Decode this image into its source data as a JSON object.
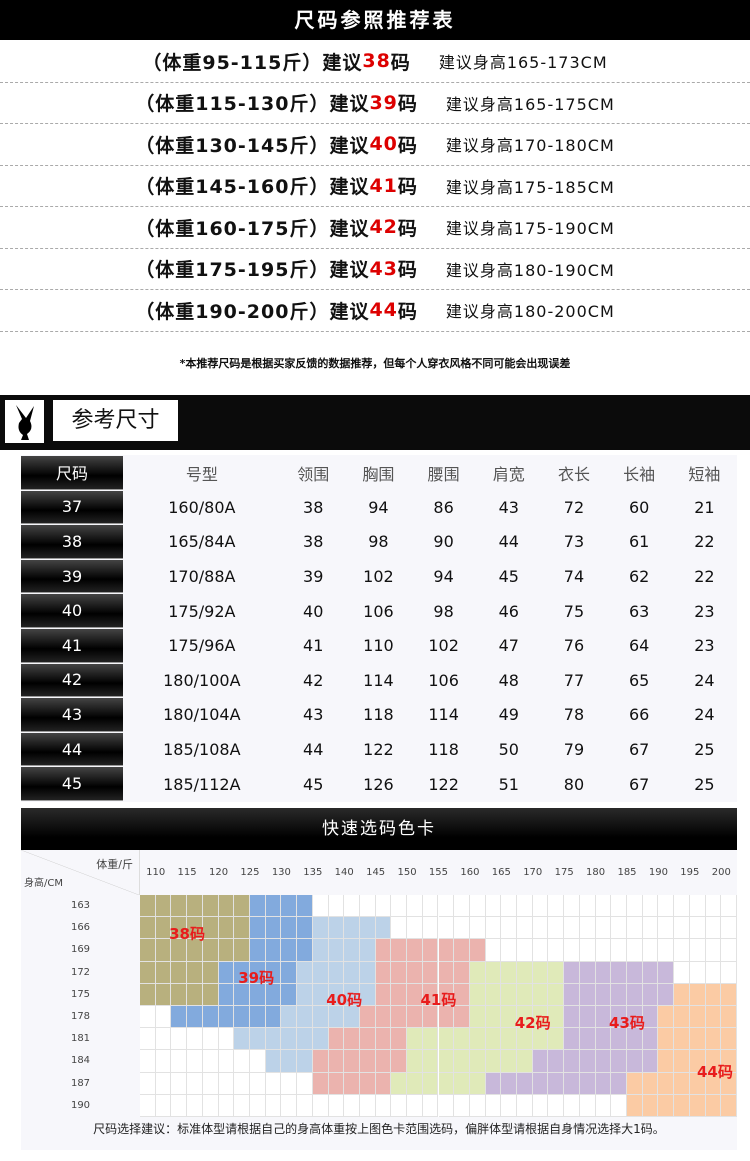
{
  "header": {
    "title": "尺码参照推荐表"
  },
  "recommendations": [
    {
      "weight": "（体重95-115斤）建议",
      "size": "38",
      "unit": "码",
      "height": "建议身高165-173CM"
    },
    {
      "weight": "（体重115-130斤）建议",
      "size": "39",
      "unit": "码",
      "height": "建议身高165-175CM"
    },
    {
      "weight": "（体重130-145斤）建议",
      "size": "40",
      "unit": "码",
      "height": "建议身高170-180CM"
    },
    {
      "weight": "（体重145-160斤）建议",
      "size": "41",
      "unit": "码",
      "height": "建议身高175-185CM"
    },
    {
      "weight": "（体重160-175斤）建议",
      "size": "42",
      "unit": "码",
      "height": "建议身高175-190CM"
    },
    {
      "weight": "（体重175-195斤）建议",
      "size": "43",
      "unit": "码",
      "height": "建议身高180-190CM"
    },
    {
      "weight": "（体重190-200斤）建议",
      "size": "44",
      "unit": "码",
      "height": "建议身高180-200CM"
    }
  ],
  "note": "*本推荐尺码是根据买家反馈的数据推荐，但每个人穿衣风格不同可能会出现误差",
  "reference": {
    "title": "参考尺寸",
    "logo": "bunny-logo"
  },
  "size_table": {
    "headers": [
      "尺码",
      "号型",
      "领围",
      "胸围",
      "腰围",
      "肩宽",
      "衣长",
      "长袖",
      "短袖"
    ],
    "rows": [
      [
        "37",
        "160/80A",
        "38",
        "94",
        "86",
        "43",
        "72",
        "60",
        "21"
      ],
      [
        "38",
        "165/84A",
        "38",
        "98",
        "90",
        "44",
        "73",
        "61",
        "22"
      ],
      [
        "39",
        "170/88A",
        "39",
        "102",
        "94",
        "45",
        "74",
        "62",
        "22"
      ],
      [
        "40",
        "175/92A",
        "40",
        "106",
        "98",
        "46",
        "75",
        "63",
        "23"
      ],
      [
        "41",
        "175/96A",
        "41",
        "110",
        "102",
        "47",
        "76",
        "64",
        "23"
      ],
      [
        "42",
        "180/100A",
        "42",
        "114",
        "106",
        "48",
        "77",
        "65",
        "24"
      ],
      [
        "43",
        "180/104A",
        "43",
        "118",
        "114",
        "49",
        "78",
        "66",
        "24"
      ],
      [
        "44",
        "185/108A",
        "44",
        "122",
        "118",
        "50",
        "79",
        "67",
        "25"
      ],
      [
        "45",
        "185/112A",
        "45",
        "126",
        "122",
        "51",
        "80",
        "67",
        "25"
      ]
    ]
  },
  "color_card": {
    "title": "快速选码色卡",
    "weight_axis_label": "体重/斤",
    "height_axis_label": "身高/CM",
    "weights": [
      "110",
      "115",
      "120",
      "125",
      "130",
      "135",
      "140",
      "145",
      "150",
      "155",
      "160",
      "165",
      "170",
      "175",
      "180",
      "185",
      "190",
      "195",
      "200"
    ],
    "heights": [
      "163",
      "166",
      "169",
      "172",
      "175",
      "178",
      "181",
      "184",
      "187",
      "190"
    ],
    "sizes": [
      {
        "label": "38码",
        "color": "#b8b07e"
      },
      {
        "label": "39码",
        "color": "#82aadd"
      },
      {
        "label": "40码",
        "color": "#bcd2e8"
      },
      {
        "label": "41码",
        "color": "#ebb3ae"
      },
      {
        "label": "42码",
        "color": "#e0eab9"
      },
      {
        "label": "43码",
        "color": "#c8b8da"
      },
      {
        "label": "44码",
        "color": "#fbcba4"
      }
    ],
    "regions": {
      "163": [
        [
          "38码",
          107.5,
          125
        ],
        [
          "39码",
          125,
          135
        ]
      ],
      "166": [
        [
          "38码",
          107.5,
          125
        ],
        [
          "39码",
          125,
          135
        ],
        [
          "40码",
          135,
          147.5
        ]
      ],
      "169": [
        [
          "38码",
          107.5,
          125
        ],
        [
          "39码",
          125,
          135
        ],
        [
          "40码",
          135,
          145
        ],
        [
          "41码",
          145,
          162.5
        ]
      ],
      "172": [
        [
          "38码",
          107.5,
          120
        ],
        [
          "39码",
          120,
          132.5
        ],
        [
          "40码",
          132.5,
          145
        ],
        [
          "41码",
          145,
          160
        ],
        [
          "42码",
          160,
          175
        ],
        [
          "43码",
          175,
          192.5
        ]
      ],
      "175": [
        [
          "38码",
          107.5,
          120
        ],
        [
          "39码",
          120,
          132.5
        ],
        [
          "40码",
          132.5,
          145
        ],
        [
          "41码",
          145,
          160
        ],
        [
          "42码",
          160,
          175
        ],
        [
          "43码",
          175,
          192.5
        ],
        [
          "44码",
          192.5,
          202.5
        ]
      ],
      "178": [
        [
          "39码",
          112.5,
          130
        ],
        [
          "40码",
          130,
          142.5
        ],
        [
          "41码",
          142.5,
          160
        ],
        [
          "42码",
          160,
          175
        ],
        [
          "43码",
          175,
          190
        ],
        [
          "44码",
          190,
          202.5
        ]
      ],
      "181": [
        [
          "40码",
          122.5,
          137.5
        ],
        [
          "41码",
          137.5,
          150
        ],
        [
          "42码",
          150,
          175
        ],
        [
          "43码",
          175,
          190
        ],
        [
          "44码",
          190,
          202.5
        ]
      ],
      "184": [
        [
          "40码",
          127.5,
          135
        ],
        [
          "41码",
          135,
          150
        ],
        [
          "42码",
          150,
          170
        ],
        [
          "43码",
          170,
          190
        ],
        [
          "44码",
          190,
          202.5
        ]
      ],
      "187": [
        [
          "41码",
          135,
          147.5
        ],
        [
          "42码",
          147.5,
          162.5
        ],
        [
          "43码",
          162.5,
          185
        ],
        [
          "44码",
          185,
          202.5
        ]
      ],
      "190": [
        [
          "44码",
          185,
          202.5
        ]
      ]
    },
    "footer": "尺码选择建议：标准体型请根据自己的身高体重按上图色卡范围选码，偏胖体型请根据自身情况选择大1码。"
  }
}
